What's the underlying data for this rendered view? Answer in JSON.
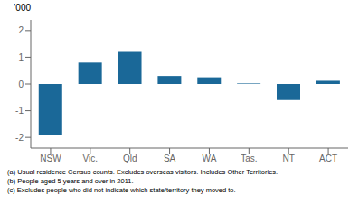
{
  "chart_data": {
    "type": "bar",
    "categories": [
      "NSW",
      "Vic.",
      "Qld",
      "SA",
      "WA",
      "Tas.",
      "NT",
      "ACT"
    ],
    "values": [
      -1.9,
      0.8,
      1.2,
      0.3,
      0.25,
      0.02,
      -0.6,
      0.12
    ],
    "color": "#1a6898",
    "ylabel": "’000",
    "ylim": [
      -2.4,
      2.4
    ],
    "yticks": [
      -2,
      -1,
      0,
      1,
      2
    ],
    "grid": false,
    "annotations": [
      "(a) Usual residence Census counts. Excludes overseas visitors. Includes Other Territories.",
      "(b) People aged 5 years and over in 2011.",
      "(c) Excludes people who did not indicate which state/territory they moved to."
    ]
  }
}
